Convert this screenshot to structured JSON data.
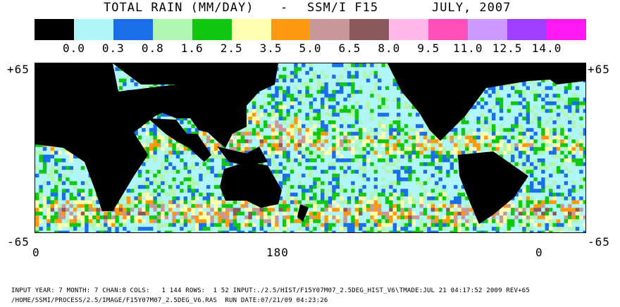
{
  "title": {
    "product": "TOTAL RAIN (MM/DAY)",
    "dash": "-",
    "instrument": "SSM/I F15",
    "period": "JULY, 2007"
  },
  "legend": {
    "colors": [
      "#000000",
      "#b0f5f8",
      "#1a6ee8",
      "#b0f5b0",
      "#10c810",
      "#ffffb0",
      "#ff9a10",
      "#c89898",
      "#8a5a5a",
      "#ffb8e8",
      "#ff50b8",
      "#cc99ff",
      "#a040ff",
      "#ff18f0"
    ],
    "ticks": [
      "0.0",
      "0.3",
      "0.8",
      "1.6",
      "2.5",
      "3.5",
      "5.0",
      "6.5",
      "8.0",
      "9.5",
      "11.0",
      "12.5",
      "14.0"
    ]
  },
  "axes": {
    "lat_top_left": "+65",
    "lat_top_right": "+65",
    "lat_bottom_left": "-65",
    "lat_bottom_right": "-65",
    "lon_left": "0",
    "lon_mid": "180",
    "lon_right": "0"
  },
  "footer": {
    "line1": "INPUT YEAR: 7 MONTH: 7 CHAN:8 COLS:   1 144 ROWS:  1 52 INPUT:./2.5/HIST/F15Y07M07_2.5DEG_HIST_V6\\TMADE:JUL 21 04:17:52 2009 REV+65",
    "line2": "/HOME/SSMI/PROCESS/2.5/IMAGE/F15Y07M07_2.5DEG_V6.RAS  RUN DATE:07/21/09 04:23:26"
  },
  "colors": {
    "land": "#000000",
    "ice_white": "#ffffff"
  }
}
